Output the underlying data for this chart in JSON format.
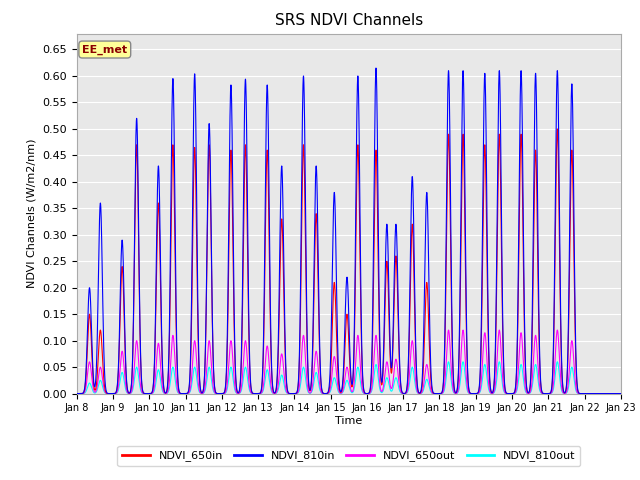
{
  "title": "SRS NDVI Channels",
  "ylabel": "NDVI Channels (W/m2/nm)",
  "xlabel": "Time",
  "ylim": [
    0.0,
    0.68
  ],
  "yticks": [
    0.0,
    0.05,
    0.1,
    0.15,
    0.2,
    0.25,
    0.3,
    0.35,
    0.4,
    0.45,
    0.5,
    0.55,
    0.6,
    0.65
  ],
  "xtick_labels": [
    "Jan 8",
    "Jan 9",
    "Jan 10",
    "Jan 11",
    "Jan 12",
    "Jan 13",
    "Jan 14",
    "Jan 15",
    "Jan 16",
    "Jan 17",
    "Jan 18",
    "Jan 19",
    "Jan 20",
    "Jan 21",
    "Jan 22",
    "Jan 23"
  ],
  "annotation_text": "EE_met",
  "annotation_color": "#8B0000",
  "annotation_bg": "#FFFF99",
  "colors": {
    "NDVI_650in": "#FF0000",
    "NDVI_810in": "#0000FF",
    "NDVI_650out": "#FF00FF",
    "NDVI_810out": "#00FFFF"
  },
  "bg_color": "#E8E8E8",
  "peak_data": [
    [
      0.35,
      0.2,
      0.15,
      0.06,
      0.02
    ],
    [
      0.65,
      0.36,
      0.12,
      0.05,
      0.025
    ],
    [
      1.25,
      0.29,
      0.24,
      0.08,
      0.04
    ],
    [
      1.65,
      0.52,
      0.47,
      0.1,
      0.05
    ],
    [
      2.25,
      0.43,
      0.36,
      0.095,
      0.045
    ],
    [
      2.65,
      0.595,
      0.47,
      0.11,
      0.05
    ],
    [
      3.25,
      0.604,
      0.465,
      0.1,
      0.05
    ],
    [
      3.65,
      0.51,
      0.47,
      0.1,
      0.05
    ],
    [
      4.25,
      0.583,
      0.46,
      0.1,
      0.05
    ],
    [
      4.65,
      0.594,
      0.47,
      0.1,
      0.05
    ],
    [
      5.25,
      0.583,
      0.46,
      0.09,
      0.045
    ],
    [
      5.65,
      0.43,
      0.33,
      0.075,
      0.035
    ],
    [
      6.25,
      0.6,
      0.47,
      0.11,
      0.05
    ],
    [
      6.6,
      0.43,
      0.34,
      0.08,
      0.04
    ],
    [
      7.1,
      0.38,
      0.21,
      0.07,
      0.03
    ],
    [
      7.45,
      0.22,
      0.15,
      0.05,
      0.025
    ],
    [
      7.75,
      0.6,
      0.47,
      0.11,
      0.05
    ],
    [
      8.25,
      0.615,
      0.46,
      0.11,
      0.055
    ],
    [
      8.55,
      0.32,
      0.25,
      0.06,
      0.03
    ],
    [
      8.8,
      0.32,
      0.26,
      0.065,
      0.03
    ],
    [
      9.25,
      0.41,
      0.32,
      0.1,
      0.05
    ],
    [
      9.65,
      0.38,
      0.21,
      0.055,
      0.027
    ],
    [
      10.25,
      0.61,
      0.49,
      0.12,
      0.06
    ],
    [
      10.65,
      0.61,
      0.49,
      0.12,
      0.06
    ],
    [
      11.25,
      0.605,
      0.47,
      0.115,
      0.055
    ],
    [
      11.65,
      0.61,
      0.49,
      0.12,
      0.06
    ],
    [
      12.25,
      0.61,
      0.49,
      0.115,
      0.055
    ],
    [
      12.65,
      0.605,
      0.46,
      0.11,
      0.055
    ],
    [
      13.25,
      0.61,
      0.5,
      0.12,
      0.06
    ],
    [
      13.65,
      0.585,
      0.46,
      0.1,
      0.05
    ]
  ],
  "sigma": 0.055
}
